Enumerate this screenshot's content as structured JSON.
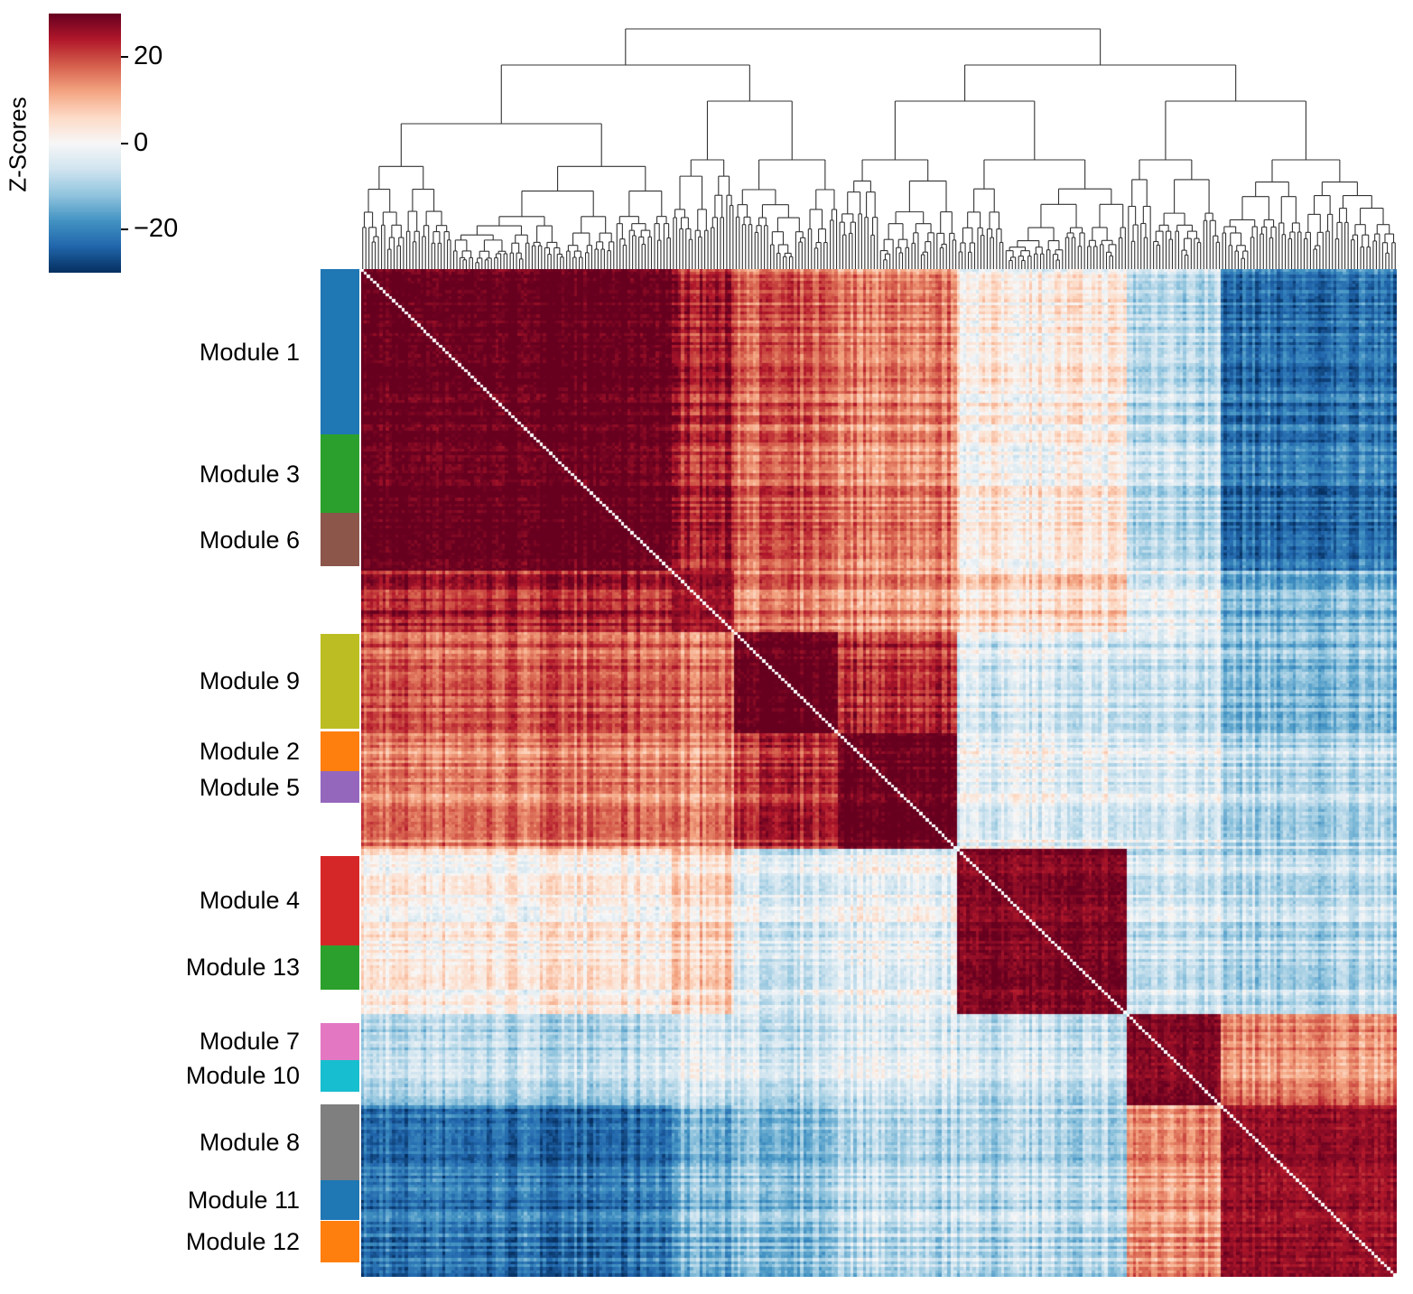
{
  "chart_data": {
    "type": "heatmap",
    "title": "",
    "subtitle": "",
    "description": "Clustered correlation heatmap (Z-scores) with column dendrogram and row module color bar",
    "colormap": "RdBu_r",
    "colorbar": {
      "label": "Z-Scores",
      "range": [
        -30,
        30
      ],
      "ticks": [
        20,
        0,
        -20
      ],
      "tick_labels": [
        "20",
        "0",
        "−20"
      ]
    },
    "xlabel": "",
    "ylabel": "",
    "n_features_approx": 330,
    "dendrogram": {
      "position": "top",
      "line_color": "#333333"
    },
    "diagonal": "self-correlation drawn as white line",
    "modules": [
      {
        "name": "Module 1",
        "color": "#1f77b4",
        "row_fraction": [
          0.0,
          0.164
        ]
      },
      {
        "name": "Module 3",
        "color": "#2ca02c",
        "row_fraction": [
          0.164,
          0.242
        ]
      },
      {
        "name": "Module 6",
        "color": "#8c564b",
        "row_fraction": [
          0.242,
          0.295
        ]
      },
      {
        "name": "Module 9",
        "color": "#bcbd22",
        "row_fraction": [
          0.362,
          0.456
        ]
      },
      {
        "name": "Module 2",
        "color": "#ff7f0e",
        "row_fraction": [
          0.459,
          0.498
        ]
      },
      {
        "name": "Module 5",
        "color": "#9467bd",
        "row_fraction": [
          0.498,
          0.53
        ]
      },
      {
        "name": "Module 4",
        "color": "#d62728",
        "row_fraction": [
          0.582,
          0.671
        ]
      },
      {
        "name": "Module 13",
        "color": "#2ca02c",
        "row_fraction": [
          0.671,
          0.715
        ]
      },
      {
        "name": "Module 7",
        "color": "#e377c2",
        "row_fraction": [
          0.748,
          0.785
        ]
      },
      {
        "name": "Module 10",
        "color": "#17becf",
        "row_fraction": [
          0.785,
          0.816
        ]
      },
      {
        "name": "Module 8",
        "color": "#7f7f7f",
        "row_fraction": [
          0.829,
          0.904
        ]
      },
      {
        "name": "Module 11",
        "color": "#1f77b4",
        "row_fraction": [
          0.904,
          0.944
        ]
      },
      {
        "name": "Module 12",
        "color": "#ff7f0e",
        "row_fraction": [
          0.944,
          0.986
        ]
      }
    ],
    "block_groups": [
      {
        "id": "A",
        "span": [
          0.0,
          0.3
        ]
      },
      {
        "id": "B",
        "span": [
          0.3,
          0.362
        ]
      },
      {
        "id": "C",
        "span": [
          0.362,
          0.46
        ]
      },
      {
        "id": "D",
        "span": [
          0.46,
          0.575
        ]
      },
      {
        "id": "E",
        "span": [
          0.575,
          0.74
        ]
      },
      {
        "id": "F",
        "span": [
          0.74,
          0.83
        ]
      },
      {
        "id": "G",
        "span": [
          0.83,
          1.0
        ]
      }
    ],
    "block_mean_zscores": {
      "groups": [
        "A",
        "B",
        "C",
        "D",
        "E",
        "F",
        "G"
      ],
      "values": [
        [
          30,
          24,
          18,
          15,
          2,
          -8,
          -22
        ],
        [
          24,
          26,
          16,
          14,
          6,
          -4,
          -14
        ],
        [
          18,
          16,
          30,
          22,
          -4,
          -6,
          -12
        ],
        [
          15,
          14,
          22,
          30,
          -2,
          -4,
          -8
        ],
        [
          2,
          6,
          -4,
          -2,
          28,
          -6,
          -8
        ],
        [
          -8,
          -4,
          -6,
          -4,
          -6,
          28,
          14
        ],
        [
          -22,
          -14,
          -12,
          -8,
          -8,
          14,
          26
        ]
      ]
    }
  }
}
